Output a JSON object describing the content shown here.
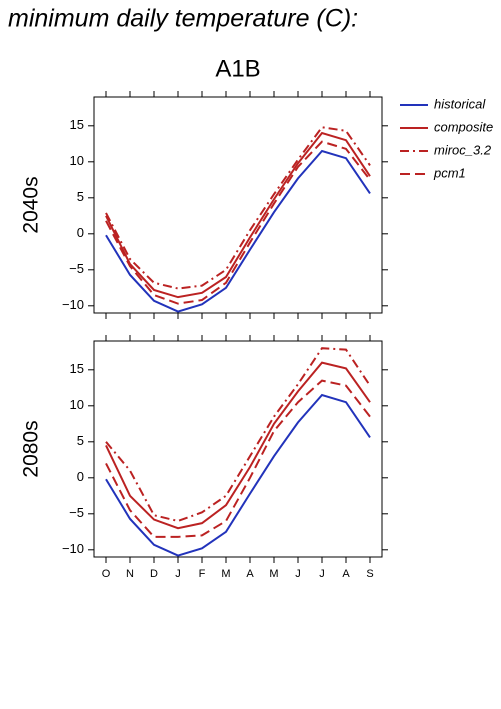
{
  "title": "minimum daily temperature (C):",
  "subtitle": "A1B",
  "chart_data": [
    {
      "type": "line",
      "y_label": "2040s",
      "ylim": [
        -11,
        19
      ],
      "yticks": [
        {
          "value": -10,
          "label": "−10"
        },
        {
          "value": -5,
          "label": "−5"
        },
        0,
        5,
        10,
        15
      ],
      "legend": "right",
      "series": [
        {
          "name": "historical",
          "color": "#2233bb",
          "dash": "solid",
          "values": [
            -0.2,
            -5.7,
            -9.3,
            -10.8,
            -9.8,
            -7.5,
            -2.2,
            3,
            7.7,
            11.5,
            10.5,
            5.6
          ]
        },
        {
          "name": "composite",
          "color": "#bb2222",
          "dash": "solid",
          "values": [
            2.5,
            -4.2,
            -7.8,
            -8.8,
            -8.2,
            -6,
            -0.5,
            4.8,
            9.8,
            14,
            13,
            8
          ]
        },
        {
          "name": "miroc_3.2",
          "color": "#bb2222",
          "dash": "dashdot",
          "values": [
            2.9,
            -3.5,
            -6.8,
            -7.6,
            -7.2,
            -5,
            0.5,
            5.5,
            10.3,
            14.8,
            14.3,
            9.5
          ]
        },
        {
          "name": "pcm1",
          "color": "#bb2222",
          "dash": "dashed",
          "values": [
            1.8,
            -4.5,
            -8.5,
            -9.7,
            -9.2,
            -6.8,
            -1.2,
            4.2,
            9.3,
            12.8,
            11.8,
            7.5
          ]
        }
      ]
    },
    {
      "type": "line",
      "y_label": "2080s",
      "categories": [
        "O",
        "N",
        "D",
        "J",
        "F",
        "M",
        "A",
        "M",
        "J",
        "J",
        "A",
        "S"
      ],
      "ylim": [
        -11,
        19
      ],
      "yticks": [
        {
          "value": -10,
          "label": "−10"
        },
        {
          "value": -5,
          "label": "−5"
        },
        0,
        5,
        10,
        15
      ],
      "series": [
        {
          "color": "#2233bb",
          "dash": "solid",
          "values": [
            -0.2,
            -5.7,
            -9.3,
            -10.8,
            -9.8,
            -7.5,
            -2.2,
            3,
            7.7,
            11.5,
            10.5,
            5.6
          ]
        },
        {
          "color": "#bb2222",
          "dash": "solid",
          "values": [
            4.5,
            -2.5,
            -5.8,
            -7,
            -6.3,
            -3.8,
            1.5,
            7.5,
            12,
            16,
            15.2,
            10.5
          ]
        },
        {
          "color": "#bb2222",
          "dash": "dashdot",
          "values": [
            5,
            1,
            -5.2,
            -6,
            -4.8,
            -2.5,
            3,
            8.5,
            13,
            18,
            17.8,
            12.8
          ]
        },
        {
          "color": "#bb2222",
          "dash": "dashed",
          "values": [
            2,
            -4.5,
            -8.2,
            -8.2,
            -8,
            -6,
            0,
            6.5,
            10.5,
            13.5,
            12.8,
            8.5
          ]
        }
      ]
    }
  ]
}
